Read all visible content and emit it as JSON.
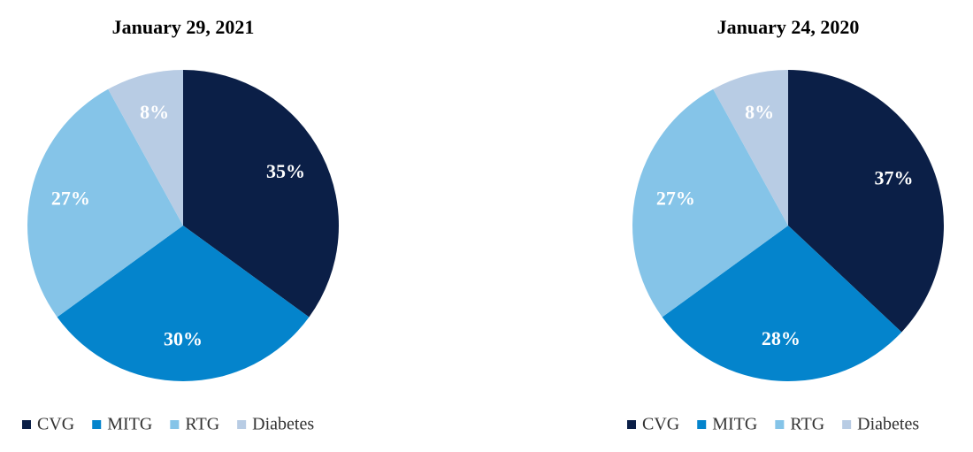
{
  "chart_data": [
    {
      "type": "pie",
      "title": "January 29, 2021",
      "categories": [
        "CVG",
        "MITG",
        "RTG",
        "Diabetes"
      ],
      "values": [
        35,
        30,
        27,
        8
      ],
      "value_labels": [
        "35%",
        "30%",
        "27%",
        "8%"
      ],
      "colors": [
        "#0b1f47",
        "#0484cc",
        "#85c4e8",
        "#b8cce4"
      ]
    },
    {
      "type": "pie",
      "title": "January 24, 2020",
      "categories": [
        "CVG",
        "MITG",
        "RTG",
        "Diabetes"
      ],
      "values": [
        37,
        28,
        27,
        8
      ],
      "value_labels": [
        "37%",
        "28%",
        "27%",
        "8%"
      ],
      "colors": [
        "#0b1f47",
        "#0484cc",
        "#85c4e8",
        "#b8cce4"
      ]
    }
  ]
}
